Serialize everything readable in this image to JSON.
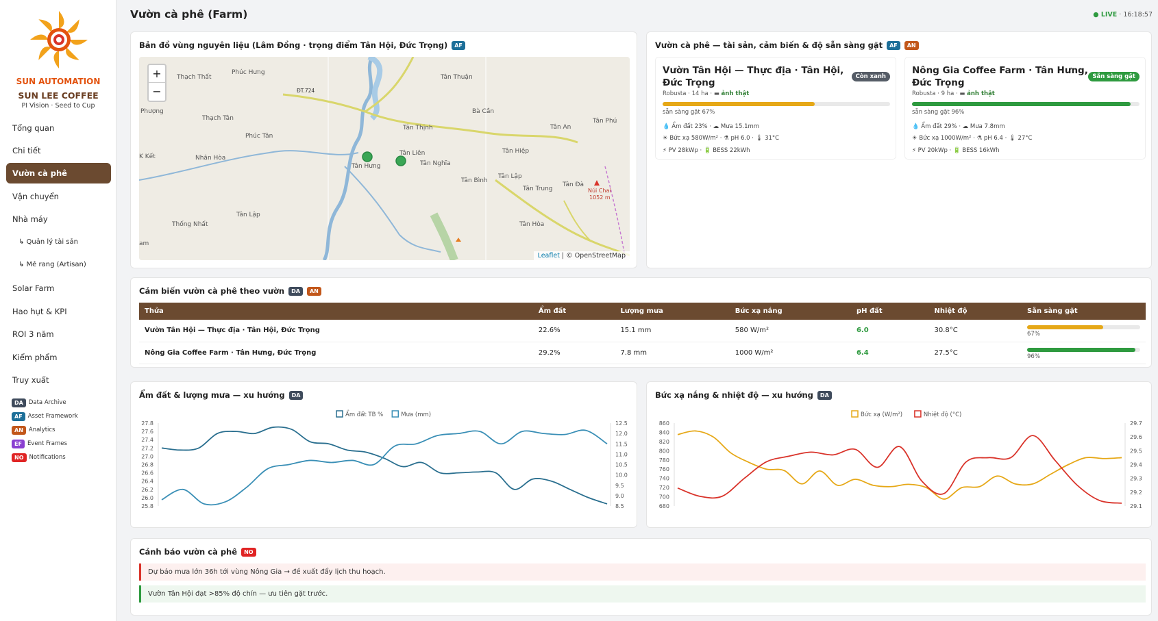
{
  "header": {
    "title": "Vườn cà phê (Farm)",
    "live_label": "● LIVE",
    "time": "16:18:57"
  },
  "sidebar": {
    "brand": "SUN AUTOMATION",
    "company": "SUN LEE COFFEE",
    "tagline": "PI Vision · Seed to Cup",
    "items": [
      {
        "label": "Tổng quan"
      },
      {
        "label": "Chi tiết"
      },
      {
        "label": "Vườn cà phê"
      },
      {
        "label": "Vận chuyển"
      },
      {
        "label": "Nhà máy"
      },
      {
        "label": "↳ Quản lý tài sản"
      },
      {
        "label": "↳ Mẻ rang (Artisan)"
      },
      {
        "label": "Solar Farm"
      },
      {
        "label": "Hao hụt & KPI"
      },
      {
        "label": "ROI 3 năm"
      },
      {
        "label": "Kiểm phẩm"
      },
      {
        "label": "Truy xuất"
      }
    ],
    "legend": [
      {
        "code": "DA",
        "label": "Data Archive"
      },
      {
        "code": "AF",
        "label": "Asset Framework"
      },
      {
        "code": "AN",
        "label": "Analytics"
      },
      {
        "code": "EF",
        "label": "Event Frames"
      },
      {
        "code": "NO",
        "label": "Notifications"
      }
    ]
  },
  "map_card": {
    "title": "Bản đồ vùng nguyên liệu (Lâm Đồng · trọng điểm Tân Hội, Đức Trọng)",
    "badge": "AF",
    "zoom_in": "+",
    "zoom_out": "−",
    "attribution_link": "Leaflet",
    "attribution_rest": " | © OpenStreetMap",
    "places": [
      "Phúc Hưng",
      "Thạch Thất",
      "Tân Thuận",
      "ĐT.724",
      "Phượng",
      "Thạch Tân",
      "Phúc Tân",
      "Tân Thịnh",
      "Bà Cần",
      "Tân An",
      "Tân Phú",
      "K Kết",
      "Nhân Hòa",
      "Tân Hưng",
      "Tân Liên",
      "Tân Nghĩa",
      "Tân Hiệp",
      "Tân Lập",
      "Tân Bình",
      "Tân Trung",
      "Tân Đà",
      "Núi Chai",
      "1052 m",
      "Tân Lập",
      "Thống Nhất",
      "Tân Hòa",
      "am"
    ]
  },
  "farms_card": {
    "title": "Vườn cà phê — tài sản, cảm biến & độ sẵn sàng gặt",
    "badges": [
      "AF",
      "AN"
    ],
    "farms": [
      {
        "name": "Vườn Tân Hội — Thực địa · Tân Hội, Đức Trọng",
        "status": "Còn xanh",
        "status_color": "#555c66",
        "meta": "Robusta · 14 ha · ",
        "photo": "ảnh thật",
        "ready_pct": 67,
        "ready_color": "#e6a817",
        "ready_text": "sẵn sàng gặt 67%",
        "line1": "💧 Ẩm đất 23% · ☁ Mưa 15.1mm",
        "line2": "☀ Bức xạ 580W/m² · ⚗ pH 6.0 · 🌡 31°C",
        "line3": "⚡ PV 28kWp · 🔋 BESS 22kWh"
      },
      {
        "name": "Nông Gia Coffee Farm · Tân Hưng, Đức Trọng",
        "status": "Sẵn sàng gặt",
        "status_color": "#2e9a3f",
        "meta": "Robusta · 9 ha · ",
        "photo": "ảnh thật",
        "ready_pct": 96,
        "ready_color": "#2e9a3f",
        "ready_text": "sẵn sàng gặt 96%",
        "line1": "💧 Ẩm đất 29% · ☁ Mưa 7.8mm",
        "line2": "☀ Bức xạ 1000W/m² · ⚗ pH 6.4 · 🌡 27°C",
        "line3": "⚡ PV 20kWp · 🔋 BESS 16kWh"
      }
    ]
  },
  "sensor_table": {
    "title": "Cảm biến vườn cà phê theo vườn",
    "badges": [
      "DA",
      "AN"
    ],
    "headers": [
      "Thửa",
      "Ẩm đất",
      "Lượng mưa",
      "Bức xạ nắng",
      "pH đất",
      "Nhiệt độ",
      "Sẵn sàng gặt"
    ],
    "rows": [
      {
        "plot": "Vườn Tân Hội — Thực địa · Tân Hội, Đức Trọng",
        "soil": "22.6%",
        "rain": "15.1 mm",
        "rad": "580 W/m²",
        "ph": "6.0",
        "temp": "30.8°C",
        "ready": 67,
        "ready_text": "67%",
        "color": "#e6a817"
      },
      {
        "plot": "Nông Gia Coffee Farm · Tân Hưng, Đức Trọng",
        "soil": "29.2%",
        "rain": "7.8 mm",
        "rad": "1000 W/m²",
        "ph": "6.4",
        "temp": "27.5°C",
        "ready": 96,
        "ready_text": "96%",
        "color": "#2e9a3f"
      }
    ]
  },
  "chart_data": [
    {
      "type": "line",
      "title": "Ẩm đất & lượng mưa — xu hướng",
      "badge": "DA",
      "y_left_ticks": [
        "27.8",
        "27.6",
        "27.4",
        "27.2",
        "27.0",
        "26.8",
        "26.6",
        "26.4",
        "26.2",
        "26.0",
        "25.8"
      ],
      "y_right_ticks": [
        "12.5",
        "12.0",
        "11.5",
        "11.0",
        "10.5",
        "10.0",
        "9.5",
        "9.0",
        "8.5"
      ],
      "ylim_left": [
        25.8,
        27.8
      ],
      "ylim_right": [
        8.5,
        12.5
      ],
      "series": [
        {
          "name": "Ẩm đất TB %",
          "axis": "left",
          "color": "#2a6f8f",
          "values": [
            27.2,
            27.15,
            27.2,
            27.55,
            27.6,
            27.55,
            27.7,
            27.65,
            27.35,
            27.3,
            27.15,
            27.1,
            26.95,
            26.75,
            26.85,
            26.6,
            26.6,
            26.62,
            26.6,
            26.2,
            26.45,
            26.4,
            26.2,
            26.0,
            25.85
          ]
        },
        {
          "name": "Mưa (mm)",
          "axis": "right",
          "color": "#3a8fb6",
          "values": [
            8.8,
            9.3,
            8.6,
            8.7,
            9.4,
            10.3,
            10.5,
            10.7,
            10.6,
            10.7,
            10.5,
            11.4,
            11.5,
            11.9,
            12.0,
            12.1,
            11.5,
            12.1,
            12.0,
            11.95,
            12.15,
            11.5
          ]
        }
      ]
    },
    {
      "type": "line",
      "title": "Bức xạ nắng & nhiệt độ — xu hướng",
      "badge": "DA",
      "y_left_ticks": [
        "860",
        "840",
        "820",
        "800",
        "780",
        "760",
        "740",
        "720",
        "700",
        "680"
      ],
      "y_right_ticks": [
        "29.7",
        "29.6",
        "29.5",
        "29.4",
        "29.3",
        "29.2",
        "29.1"
      ],
      "ylim_left": [
        680,
        860
      ],
      "ylim_right": [
        29.1,
        29.7
      ],
      "series": [
        {
          "name": "Bức xạ (W/m²)",
          "axis": "left",
          "color": "#e6a817",
          "values": [
            835,
            843,
            830,
            795,
            775,
            760,
            757,
            728,
            756,
            725,
            738,
            725,
            722,
            727,
            720,
            695,
            720,
            722,
            745,
            728,
            728,
            749,
            770,
            785,
            783,
            785
          ]
        },
        {
          "name": "Nhiệt độ (°C)",
          "axis": "right",
          "color": "#d9332a",
          "values": [
            29.23,
            29.17,
            29.17,
            29.3,
            29.42,
            29.46,
            29.49,
            29.47,
            29.51,
            29.38,
            29.53,
            29.28,
            29.19,
            29.42,
            29.45,
            29.45,
            29.61,
            29.43,
            29.25,
            29.14,
            29.12
          ]
        }
      ]
    }
  ],
  "alerts_card": {
    "title": "Cảnh báo vườn cà phê",
    "badge": "NO",
    "items": [
      {
        "text": "Dự báo mưa lớn 36h tới vùng Nông Gia → đề xuất đẩy lịch thu hoạch.",
        "color": "#d9332a",
        "bg": "#fdf0ef"
      },
      {
        "text": "Vườn Tân Hội đạt >85% độ chín — ưu tiên gặt trước.",
        "color": "#2e9a3f",
        "bg": "#eef7ef"
      }
    ]
  }
}
